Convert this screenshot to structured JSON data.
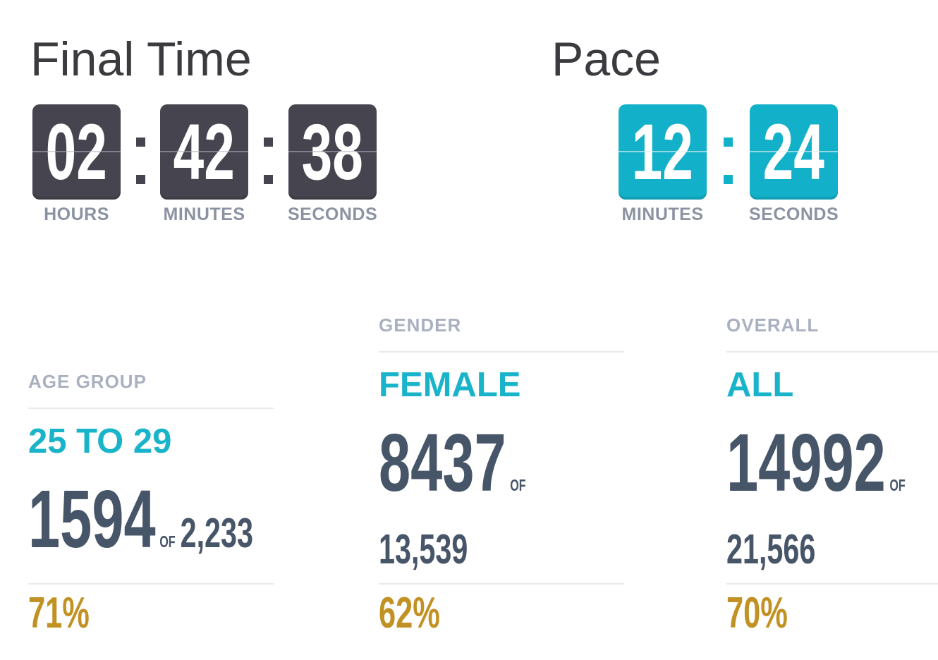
{
  "final_time": {
    "title": "Final Time",
    "units": [
      {
        "value": "02",
        "label": "HOURS"
      },
      {
        "value": "42",
        "label": "MINUTES"
      },
      {
        "value": "38",
        "label": "SECONDS"
      }
    ]
  },
  "pace": {
    "title": "Pace",
    "units": [
      {
        "value": "12",
        "label": "MINUTES"
      },
      {
        "value": "24",
        "label": "SECONDS"
      }
    ]
  },
  "stats": [
    {
      "header": "AGE GROUP",
      "category": "25 TO 29",
      "rank": "1594",
      "of_label": "OF",
      "total": "2,233",
      "percent": "71%"
    },
    {
      "header": "GENDER",
      "category": "FEMALE",
      "rank": "8437",
      "of_label": "OF",
      "total": "13,539",
      "percent": "62%"
    },
    {
      "header": "OVERALL",
      "category": "ALL",
      "rank": "14992",
      "of_label": "OF",
      "total": "21,566",
      "percent": "70%"
    }
  ],
  "colors": {
    "dark_card": "#45444f",
    "teal": "#12b1c9",
    "teal_text": "#1ab4ca",
    "slate_number": "#475569",
    "gold_percent": "#c19223",
    "label_gray": "#8b93a2",
    "header_gray": "#a9b1c0",
    "divider": "#e7e9ee"
  }
}
